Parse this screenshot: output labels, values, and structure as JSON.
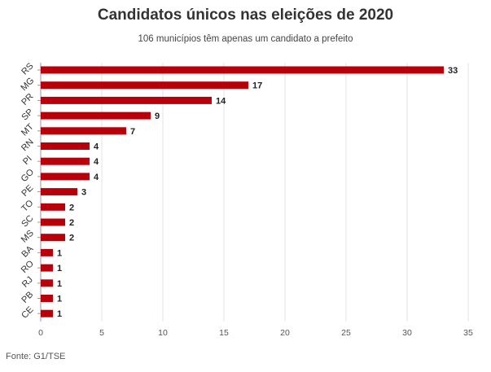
{
  "chart_data": {
    "type": "bar",
    "orientation": "horizontal",
    "title": "Candidatos únicos nas eleições de 2020",
    "subtitle": "106 municípios têm apenas um candidato a prefeito",
    "source": "Fonte: G1/TSE",
    "categories": [
      "RS",
      "MG",
      "PR",
      "SP",
      "MT",
      "RN",
      "PI",
      "GO",
      "PE",
      "TO",
      "SC",
      "MS",
      "BA",
      "RO",
      "RJ",
      "PB",
      "CE"
    ],
    "values": [
      33,
      17,
      14,
      9,
      7,
      4,
      4,
      4,
      3,
      2,
      2,
      2,
      1,
      1,
      1,
      1,
      1
    ],
    "xlim": [
      0,
      35
    ],
    "xticks": [
      0,
      5,
      10,
      15,
      20,
      25,
      30,
      35
    ],
    "grid": true,
    "bar_color": "#b8000a"
  }
}
